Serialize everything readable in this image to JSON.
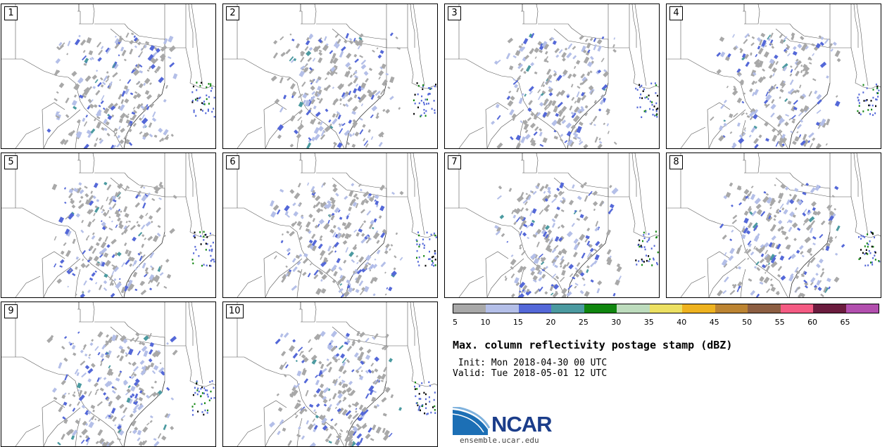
{
  "panels": [
    {
      "label": "1"
    },
    {
      "label": "2"
    },
    {
      "label": "3"
    },
    {
      "label": "4"
    },
    {
      "label": "5"
    },
    {
      "label": "6"
    },
    {
      "label": "7"
    },
    {
      "label": "8"
    },
    {
      "label": "9"
    },
    {
      "label": "10"
    }
  ],
  "colorbar": {
    "colors": [
      "#a8a8a8",
      "#b4bfe8",
      "#5468d8",
      "#4b9aa0",
      "#10860f",
      "#bddcbd",
      "#ece062",
      "#eeb21f",
      "#bc8432",
      "#8c5e42",
      "#f45b83",
      "#6b1c3e",
      "#b24fae"
    ],
    "ticks": [
      "5",
      "10",
      "15",
      "20",
      "25",
      "30",
      "35",
      "40",
      "45",
      "50",
      "55",
      "60",
      "65"
    ]
  },
  "title": "Max. column reflectivity postage stamp (dBZ)",
  "init_line": " Init: Mon 2018-04-30 00 UTC",
  "valid_line": "Valid: Tue 2018-05-01 12 UTC",
  "logo": {
    "word": "NCAR",
    "url": "ensemble.ucar.edu"
  }
}
